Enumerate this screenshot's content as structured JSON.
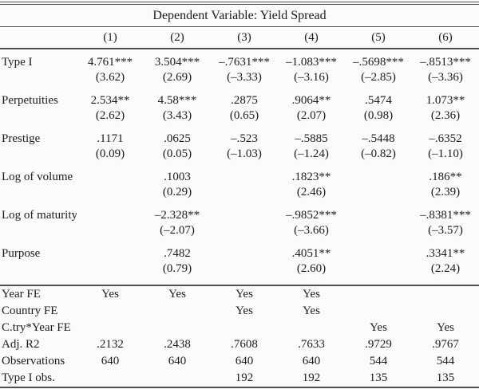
{
  "colors": {
    "background": "#fbfbfa",
    "text": "#1c1c1c",
    "rule": "#4f4f4f"
  },
  "table": {
    "title": "Dependent Variable: Yield Spread",
    "columns": [
      "(1)",
      "(2)",
      "(3)",
      "(4)",
      "(5)",
      "(6)"
    ],
    "coef_rows": [
      {
        "label": "Type I",
        "est": [
          "4.761***",
          "3.504***",
          "–.7631***",
          "–1.083***",
          "–.5698***",
          "–.8513***"
        ],
        "t": [
          "(3.62)",
          "(2.69)",
          "(–3.33)",
          "(–3.16)",
          "(–2.85)",
          "(–3.36)"
        ]
      },
      {
        "label": "Perpetuities",
        "est": [
          "2.534**",
          "4.58***",
          ".2875",
          ".9064**",
          ".5474",
          "1.073**"
        ],
        "t": [
          "(2.62)",
          "(3.43)",
          "(0.65)",
          "(2.07)",
          "(0.98)",
          "(2.36)"
        ]
      },
      {
        "label": "Prestige",
        "est": [
          ".1171",
          ".0625",
          "–.523",
          "–.5885",
          "–.5448",
          "–.6352"
        ],
        "t": [
          "(0.09)",
          "(0.05)",
          "(–1.03)",
          "(–1.24)",
          "(–0.82)",
          "(–1.10)"
        ]
      },
      {
        "label": "Log of volume",
        "est": [
          "",
          ".1003",
          "",
          ".1823**",
          "",
          ".186**"
        ],
        "t": [
          "",
          "(0.29)",
          "",
          "(2.46)",
          "",
          "(2.39)"
        ]
      },
      {
        "label": "Log of maturity",
        "est": [
          "",
          "–2.328**",
          "",
          "–.9852***",
          "",
          "–.8381***"
        ],
        "t": [
          "",
          "(–2.07)",
          "",
          "(–3.66)",
          "",
          "(–3.57)"
        ]
      },
      {
        "label": "Purpose",
        "est": [
          "",
          ".7482",
          "",
          ".4051**",
          "",
          ".3341**"
        ],
        "t": [
          "",
          "(0.79)",
          "",
          "(2.60)",
          "",
          "(2.24)"
        ]
      }
    ],
    "bottom_rows": [
      {
        "label": "Year FE",
        "values": [
          "Yes",
          "Yes",
          "Yes",
          "Yes",
          "",
          ""
        ]
      },
      {
        "label": "Country FE",
        "values": [
          "",
          "",
          "Yes",
          "Yes",
          "",
          ""
        ]
      },
      {
        "label": "C.try*Year FE",
        "values": [
          "",
          "",
          "",
          "",
          "Yes",
          "Yes"
        ]
      },
      {
        "label": "Adj. R2",
        "values": [
          ".2132",
          ".2438",
          ".7608",
          ".7633",
          ".9729",
          ".9767"
        ]
      },
      {
        "label": "Observations",
        "values": [
          "640",
          "640",
          "640",
          "640",
          "544",
          "544"
        ]
      },
      {
        "label": "Type I obs.",
        "values": [
          "",
          "",
          "192",
          "192",
          "135",
          "135"
        ]
      }
    ]
  }
}
